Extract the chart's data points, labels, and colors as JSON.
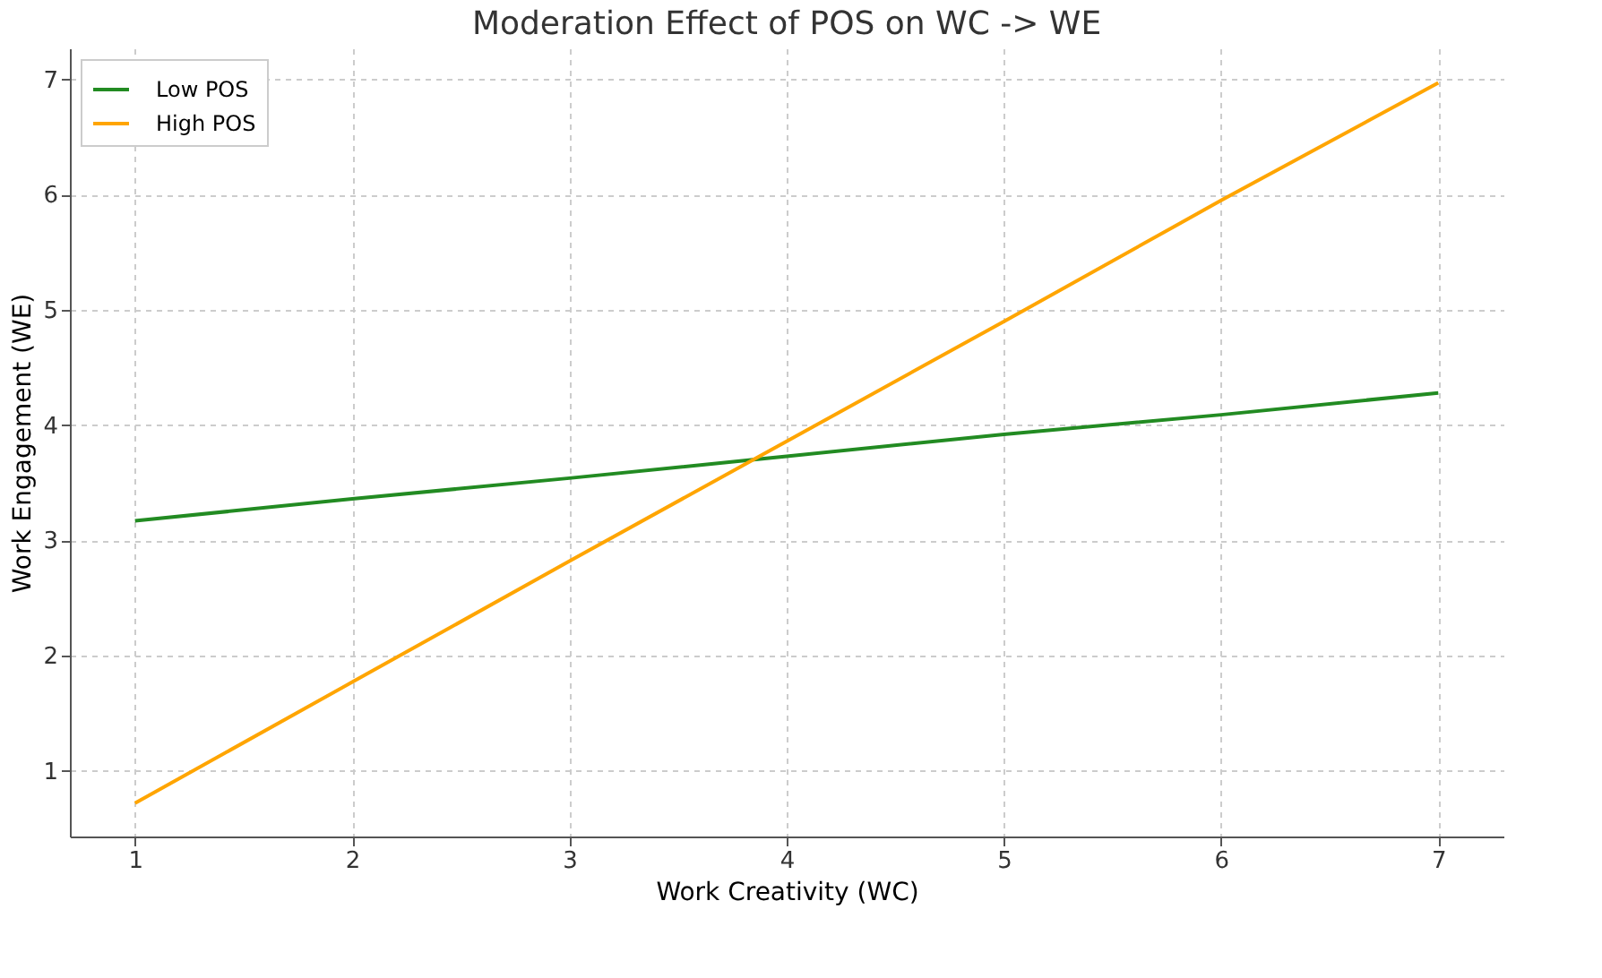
{
  "chart_data": {
    "type": "line",
    "title": "Moderation Effect of POS on WC -> WE",
    "xlabel": "Work Creativity (WC)",
    "ylabel": "Work Engagement (WE)",
    "x": [
      1,
      2,
      3,
      4,
      5,
      6,
      7
    ],
    "series": [
      {
        "name": "Low POS",
        "color": "#228b22",
        "values": [
          3.17,
          3.36,
          3.54,
          3.73,
          3.92,
          4.09,
          4.28
        ]
      },
      {
        "name": "High POS",
        "color": "#ffa500",
        "values": [
          0.72,
          1.77,
          2.82,
          3.86,
          4.9,
          5.95,
          6.97
        ]
      }
    ],
    "xlim": [
      0.7,
      7.3
    ],
    "ylim": [
      0.43,
      7.27
    ],
    "xticks": [
      1,
      2,
      3,
      4,
      5,
      6,
      7
    ],
    "yticks": [
      1,
      2,
      3,
      4,
      5,
      6,
      7
    ],
    "grid": true,
    "legend": "top left",
    "marker": "none",
    "line_style": "solid"
  }
}
